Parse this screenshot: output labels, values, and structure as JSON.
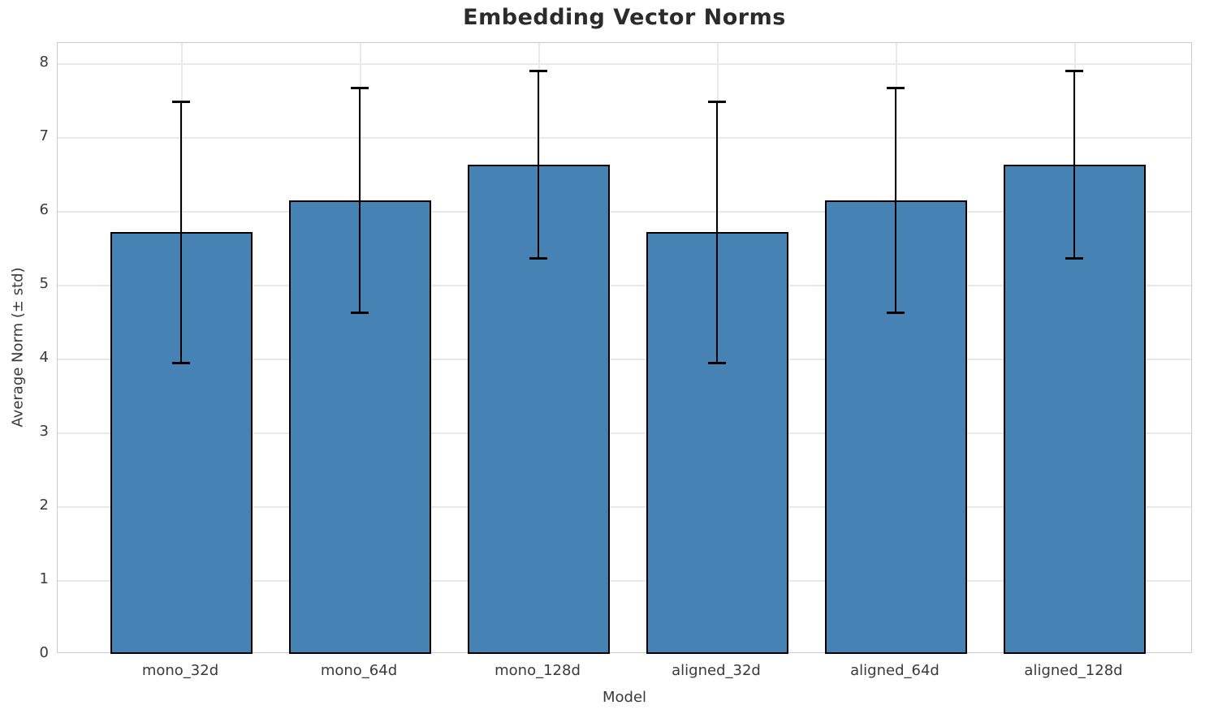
{
  "chart_data": {
    "type": "bar",
    "title": "Embedding Vector Norms",
    "xlabel": "Model",
    "ylabel": "Average Norm (± std)",
    "categories": [
      "mono_32d",
      "mono_64d",
      "mono_128d",
      "aligned_32d",
      "aligned_64d",
      "aligned_128d"
    ],
    "values": [
      5.71,
      6.14,
      6.63,
      5.71,
      6.14,
      6.63
    ],
    "error_std": [
      1.77,
      1.52,
      1.27,
      1.77,
      1.52,
      1.27
    ],
    "y_ticks": [
      "0",
      "1",
      "2",
      "3",
      "4",
      "5",
      "6",
      "7",
      "8"
    ],
    "ylim": [
      0,
      8.27
    ],
    "grid": "both",
    "legend": "none",
    "colors": {
      "bar_fill": "#4682b4",
      "bar_edge": "#000000",
      "error_bar": "#000000",
      "grid": "#e9e9e9",
      "spine": "#cccccc",
      "tick_text": "#3a3a3a",
      "title_text": "#2b2b2b",
      "background": "#ffffff"
    }
  }
}
